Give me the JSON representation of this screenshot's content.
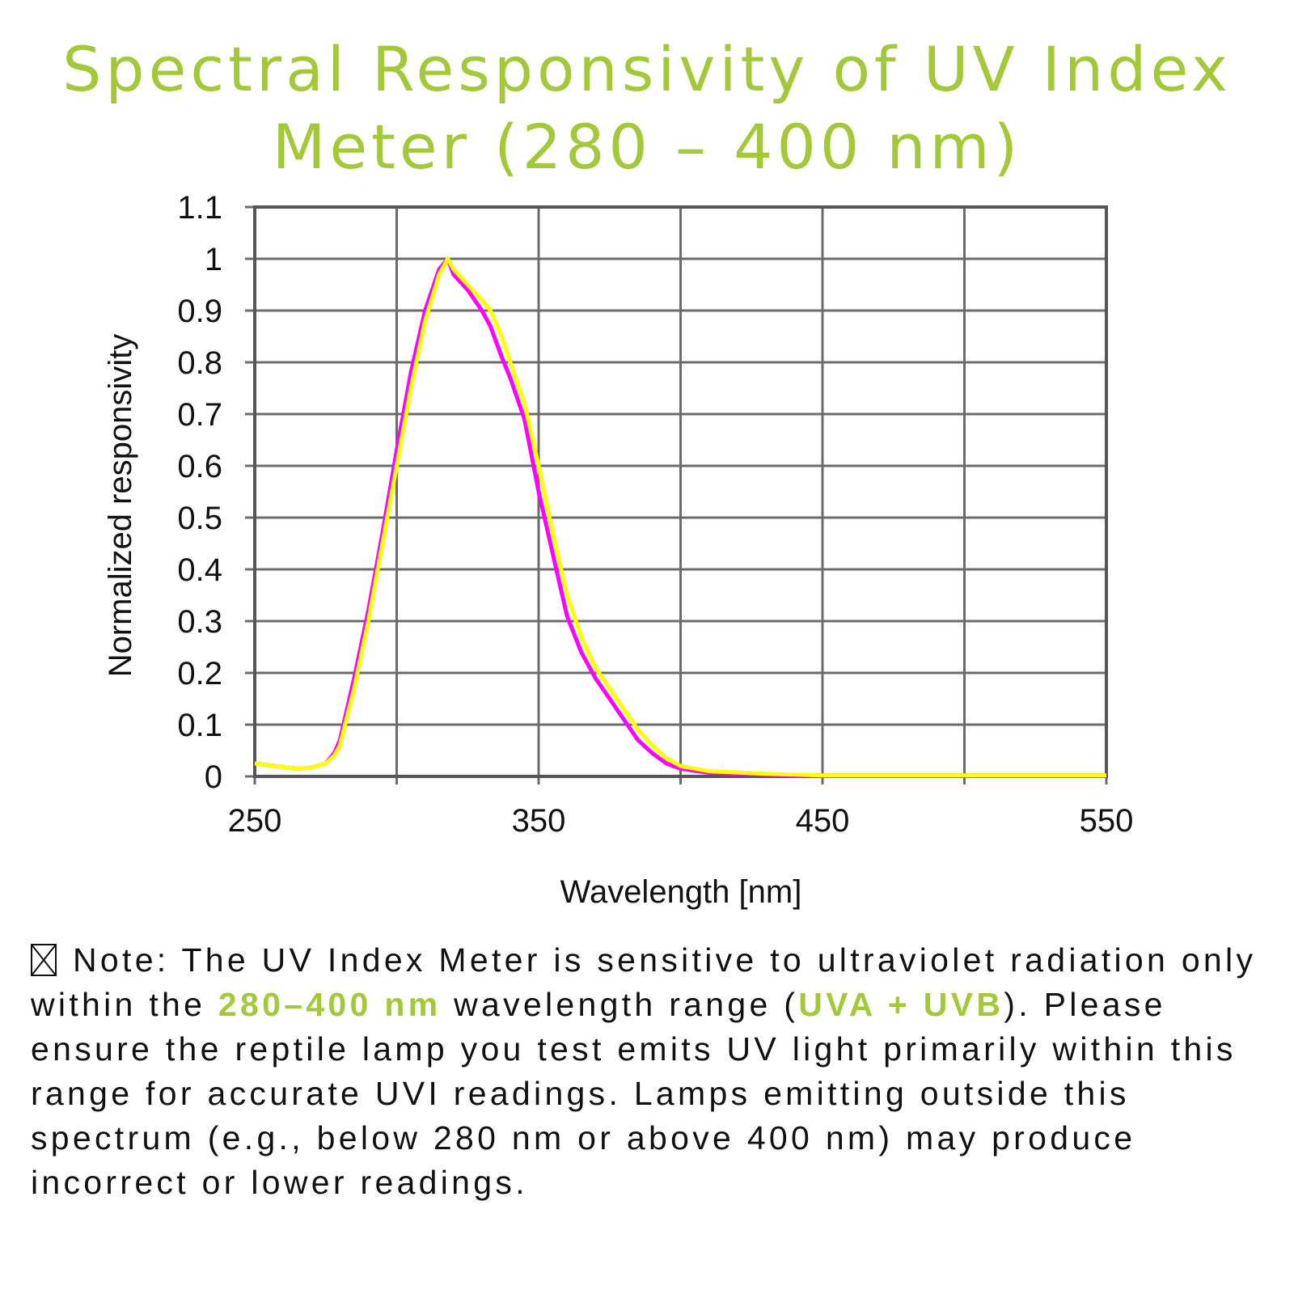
{
  "chart_data": {
    "type": "line",
    "title": "Spectral Responsivity of UV Index Meter (280 – 400 nm)",
    "xlabel": "Wavelength [nm]",
    "ylabel": "Normalized responsivity",
    "xlim": [
      250,
      550
    ],
    "ylim": [
      0,
      1.1
    ],
    "x_ticks": [
      "250",
      "350",
      "450",
      "550"
    ],
    "x_grid": [
      250,
      300,
      350,
      400,
      450,
      500,
      550
    ],
    "y_ticks": [
      "0",
      "0.1",
      "0.2",
      "0.3",
      "0.4",
      "0.5",
      "0.6",
      "0.7",
      "0.8",
      "0.9",
      "1",
      "1.1"
    ],
    "grid": true,
    "series": [
      {
        "color": "#ff00ff",
        "x": [
          250,
          260,
          265,
          270,
          275,
          278,
          280,
          285,
          290,
          295,
          300,
          305,
          310,
          315,
          318,
          320,
          325,
          330,
          333,
          337,
          340,
          345,
          350,
          355,
          360,
          365,
          370,
          375,
          380,
          385,
          390,
          395,
          400,
          410,
          430,
          450,
          500,
          550
        ],
        "y": [
          0.025,
          0.018,
          0.015,
          0.017,
          0.025,
          0.045,
          0.07,
          0.19,
          0.32,
          0.47,
          0.63,
          0.78,
          0.9,
          0.98,
          1.0,
          0.97,
          0.94,
          0.9,
          0.87,
          0.81,
          0.77,
          0.69,
          0.55,
          0.43,
          0.31,
          0.24,
          0.19,
          0.15,
          0.11,
          0.07,
          0.045,
          0.025,
          0.015,
          0.007,
          0.003,
          0.002,
          0.002,
          0.002
        ]
      },
      {
        "color": "#ffff00",
        "x": [
          250,
          260,
          265,
          270,
          275,
          278,
          280,
          285,
          290,
          295,
          300,
          305,
          310,
          315,
          318,
          320,
          325,
          330,
          333,
          337,
          340,
          345,
          350,
          355,
          360,
          365,
          370,
          375,
          380,
          385,
          390,
          395,
          400,
          410,
          430,
          450,
          500,
          550
        ],
        "y": [
          0.025,
          0.018,
          0.015,
          0.017,
          0.025,
          0.04,
          0.06,
          0.17,
          0.3,
          0.45,
          0.6,
          0.75,
          0.88,
          0.97,
          1.0,
          0.98,
          0.95,
          0.92,
          0.9,
          0.85,
          0.8,
          0.72,
          0.6,
          0.47,
          0.35,
          0.27,
          0.21,
          0.17,
          0.13,
          0.09,
          0.06,
          0.035,
          0.02,
          0.01,
          0.005,
          0.002,
          0.002,
          0.002
        ]
      }
    ]
  },
  "note": {
    "prefix": "Note: The UV Index Meter is sensitive to ultraviolet radiation only within the ",
    "range": "280–400 nm",
    "mid": " wavelength range (",
    "bands": "UVA + UVB",
    "rest": "). Please ensure the reptile lamp you test emits UV light primarily within this range for accurate UVI readings. Lamps emitting outside this spectrum (e.g., below 280 nm or above 400 nm) may produce incorrect or lower readings.",
    "icon": "boxed-x-icon"
  },
  "colors": {
    "title": "#a3c93a",
    "highlight": "#a3c93a"
  }
}
